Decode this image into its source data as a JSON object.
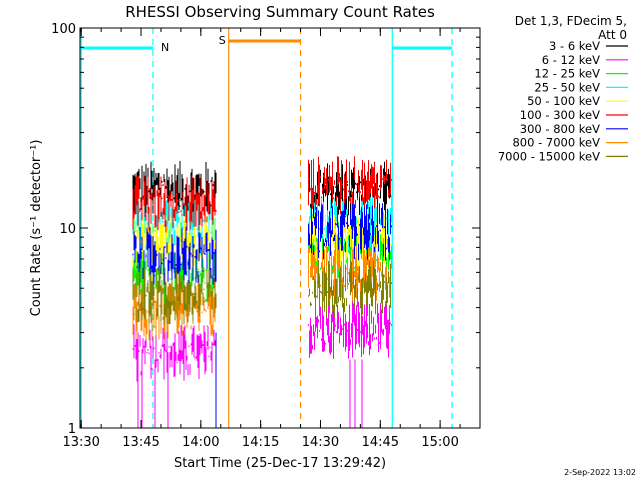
{
  "chart_data": {
    "type": "line",
    "title": "RHESSI Observing Summary Count Rates",
    "xlabel": "Start Time (25-Dec-17 13:29:42)",
    "ylabel": "Count Rate (s⁻¹ detector⁻¹)",
    "y_scale": "log",
    "ylim": [
      1,
      100
    ],
    "xlim": [
      "13:30",
      "15:10"
    ],
    "x_ticks": [
      "13:30",
      "13:45",
      "14:00",
      "14:15",
      "14:30",
      "14:45",
      "15:00"
    ],
    "y_ticks": [
      "1",
      "10",
      "100"
    ],
    "grid": false,
    "legend_placement": "right",
    "legend_header": [
      "Det 1,3, FDecim 5,",
      "Att 0"
    ],
    "footer": "2-Sep-2022 13:02",
    "series": [
      {
        "name": "3 - 6 keV",
        "color": "#000000",
        "segments": [
          {
            "start": "13:43",
            "end": "14:04",
            "level": 17
          },
          {
            "start": "14:27",
            "end": "14:48",
            "level": 17
          }
        ]
      },
      {
        "name": "6 - 12 keV",
        "color": "#ff00ff",
        "segments": [
          {
            "start": "13:43",
            "end": "14:04",
            "level": 2.6
          },
          {
            "start": "14:27",
            "end": "14:48",
            "level": 3.4
          }
        ]
      },
      {
        "name": "12 - 25 keV",
        "color": "#00ff00",
        "segments": [
          {
            "start": "13:43",
            "end": "14:04",
            "level": 6.2
          },
          {
            "start": "14:27",
            "end": "14:48",
            "level": 8.5
          }
        ]
      },
      {
        "name": "25 - 50 keV",
        "color": "#00ffff",
        "segments": [
          {
            "start": "13:43",
            "end": "14:04",
            "level": 11
          },
          {
            "start": "14:27",
            "end": "14:48",
            "level": 11.5
          }
        ]
      },
      {
        "name": "50 - 100 keV",
        "color": "#ffff00",
        "segments": [
          {
            "start": "13:43",
            "end": "14:04",
            "level": 9
          },
          {
            "start": "14:27",
            "end": "14:48",
            "level": 9.5
          }
        ]
      },
      {
        "name": "100 - 300 keV",
        "color": "#ff0000",
        "segments": [
          {
            "start": "13:43",
            "end": "14:04",
            "level": 14.5
          },
          {
            "start": "14:27",
            "end": "14:48",
            "level": 18
          }
        ]
      },
      {
        "name": "300 - 800 keV",
        "color": "#0000ff",
        "segments": [
          {
            "start": "13:43",
            "end": "14:04",
            "level": 8
          },
          {
            "start": "14:27",
            "end": "14:48",
            "level": 10.5
          }
        ]
      },
      {
        "name": "800 - 7000 keV",
        "color": "#ff8c00",
        "segments": [
          {
            "start": "13:43",
            "end": "14:04",
            "level": 4.2
          },
          {
            "start": "14:27",
            "end": "14:48",
            "level": 6.5
          }
        ]
      },
      {
        "name": "7000 - 15000 keV",
        "color": "#808000",
        "segments": [
          {
            "start": "13:43",
            "end": "14:04",
            "level": 5
          },
          {
            "start": "14:27",
            "end": "14:48",
            "level": 5.5
          }
        ]
      }
    ],
    "flags": [
      {
        "label": "N",
        "color": "#00ffff",
        "bars": [
          {
            "start": "13:30",
            "end": "13:48"
          },
          {
            "start": "14:48",
            "end": "15:03"
          }
        ],
        "lines": [
          {
            "time": "13:30",
            "style": "solid"
          },
          {
            "time": "13:48",
            "style": "dashed"
          },
          {
            "time": "14:48",
            "style": "solid"
          },
          {
            "time": "15:03",
            "style": "dashed"
          }
        ]
      },
      {
        "label": "S",
        "color": "#ff8c00",
        "bars": [
          {
            "start": "14:07",
            "end": "14:25"
          }
        ],
        "lines": [
          {
            "time": "14:07",
            "style": "solid"
          },
          {
            "time": "14:25",
            "style": "dashed"
          }
        ]
      }
    ]
  }
}
